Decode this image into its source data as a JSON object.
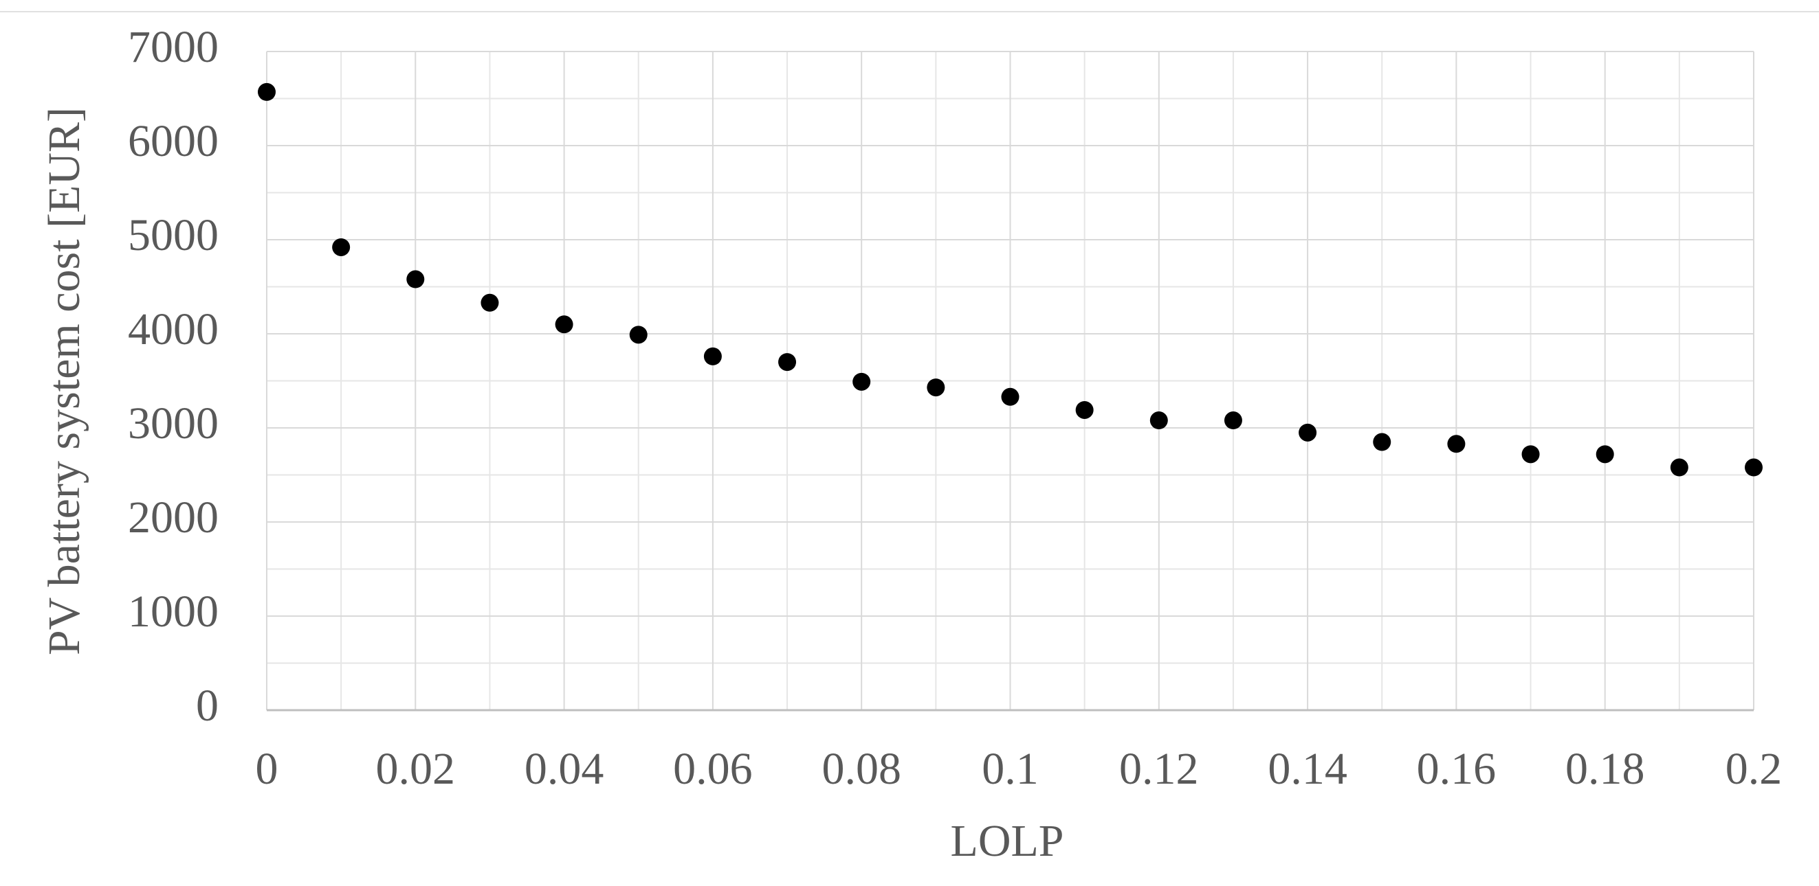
{
  "chart_data": {
    "type": "scatter",
    "x_label": "LOLP",
    "y_label": "PV battery system cost [EUR]",
    "x": [
      0,
      0.01,
      0.02,
      0.03,
      0.04,
      0.05,
      0.06,
      0.07,
      0.08,
      0.09,
      0.1,
      0.11,
      0.12,
      0.13,
      0.14,
      0.15,
      0.16,
      0.17,
      0.18,
      0.19,
      0.2
    ],
    "values": [
      6570,
      4920,
      4580,
      4330,
      4100,
      3990,
      3760,
      3700,
      3490,
      3430,
      3330,
      3190,
      3080,
      3080,
      2950,
      2850,
      2830,
      2720,
      2720,
      2580,
      2580
    ],
    "color": "#000000",
    "xlim": [
      0,
      0.2
    ],
    "xticks": [
      0,
      0.02,
      0.04,
      0.06,
      0.08,
      0.1,
      0.12,
      0.14,
      0.16,
      0.18,
      0.2
    ],
    "ylim": [
      0,
      7000
    ],
    "yticks": [
      0,
      1000,
      2000,
      3000,
      4000,
      5000,
      6000,
      7000
    ],
    "grid": true,
    "minor_grid": true
  }
}
